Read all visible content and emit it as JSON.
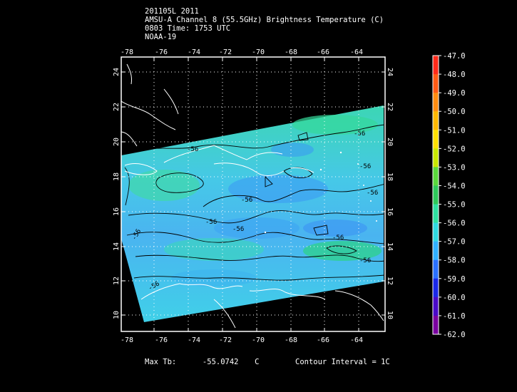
{
  "header": {
    "line1": "201105L 2011",
    "line2": "AMSU-A Channel 8 (55.5GHz) Brightness Temperature (C)",
    "line3": "0803 Time: 1753 UTC",
    "line4": "NOAA-19"
  },
  "map": {
    "lon_ticks": [
      "-78",
      "-76",
      "-74",
      "-72",
      "-70",
      "-68",
      "-66",
      "-64"
    ],
    "lat_ticks": [
      "24",
      "22",
      "20",
      "18",
      "16",
      "14",
      "12",
      "10"
    ],
    "contour_labels": [
      "-56",
      "-56",
      "-56",
      "-56",
      "-56",
      "-56",
      "-56",
      "-56",
      "-56",
      "-56",
      "-56"
    ],
    "colors": {
      "frame": "#ffffff",
      "coast": "#ffffff",
      "contour": "#000000",
      "background": "#000000"
    }
  },
  "colorbar": {
    "labels": [
      "-47.0",
      "-48.0",
      "-49.0",
      "-50.0",
      "-51.0",
      "-52.0",
      "-53.0",
      "-54.0",
      "-55.0",
      "-56.0",
      "-57.0",
      "-58.0",
      "-59.0",
      "-60.0",
      "-61.0",
      "-62.0"
    ],
    "colors": [
      "#ff2a1a",
      "#ff5a14",
      "#ff8c10",
      "#ffb800",
      "#ffe000",
      "#c8e800",
      "#5ad83c",
      "#2ec85a",
      "#2ee0a0",
      "#30d8e0",
      "#30b0ff",
      "#2a70ff",
      "#1a28e8",
      "#4a0ac8",
      "#7a00a0",
      "#a02a8a"
    ]
  },
  "footer": {
    "max_label": "Max Tb:",
    "max_value": "-55.0742",
    "max_unit": "C",
    "contour_interval": "Contour Interval = 1C"
  }
}
